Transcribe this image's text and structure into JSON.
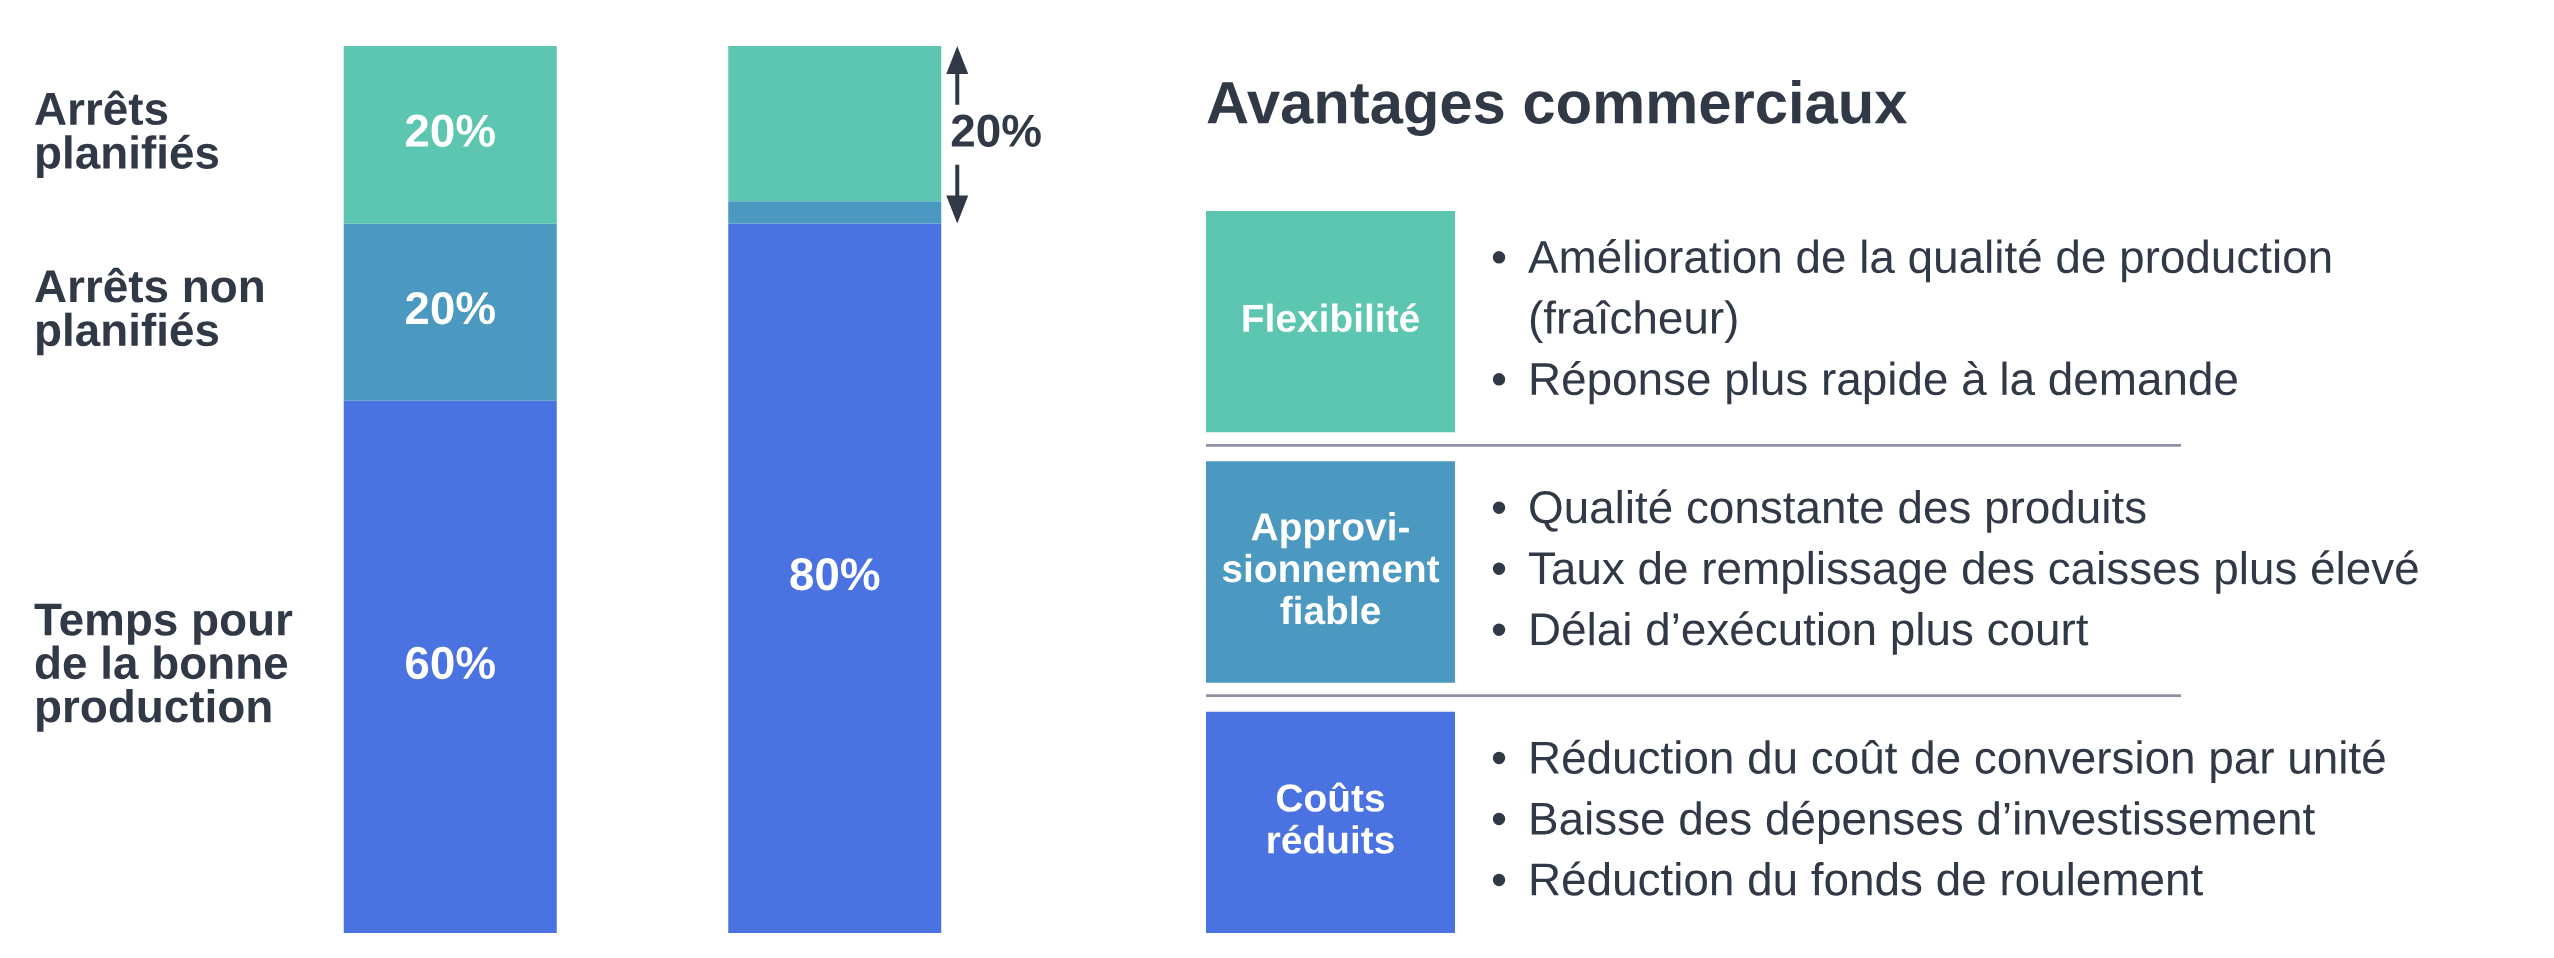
{
  "chart_data": [
    {
      "type": "bar",
      "stacked": true,
      "categories": [
        null,
        null
      ],
      "tick_labels": false,
      "series": [
        {
          "name": "Temps pour\nde la bonne\nproduction",
          "color": "#4a72e1",
          "values": [
            60,
            80
          ],
          "value_labels": [
            "60%",
            "80%"
          ]
        },
        {
          "name": "Arrêts non\nplanifiés",
          "color": "#4b98c0",
          "values": [
            20,
            2.5
          ],
          "value_labels": [
            "20%",
            null
          ]
        },
        {
          "name": "Arrêts\nplanifiés",
          "color": "#5dc6b0",
          "values": [
            20,
            17.5
          ],
          "value_labels": [
            "20%",
            null
          ]
        }
      ],
      "annotations": [
        "20%"
      ]
    },
    {
      "type": "other",
      "title": "Avantages commerciaux",
      "categories": [
        "Flexibilité",
        "Approvi-\nsionnement\nfiable",
        "Coûts\nréduits"
      ],
      "colors": [
        "#5dc6b0",
        "#4b98c0",
        "#4a72e1"
      ],
      "annotations": [
        "• Amélioration de la qualité de production\n(fraîcheur)\n• Réponse plus rapide à la demande",
        "• Qualité constante des produits\n• Taux de remplissage des caisses plus élevé\n• Délai d’exécution plus court",
        "• Réduction du coût de conversion par unité\n• Baisse des dépenses d’investissement\n• Réduction du fonds de roulement"
      ]
    }
  ]
}
